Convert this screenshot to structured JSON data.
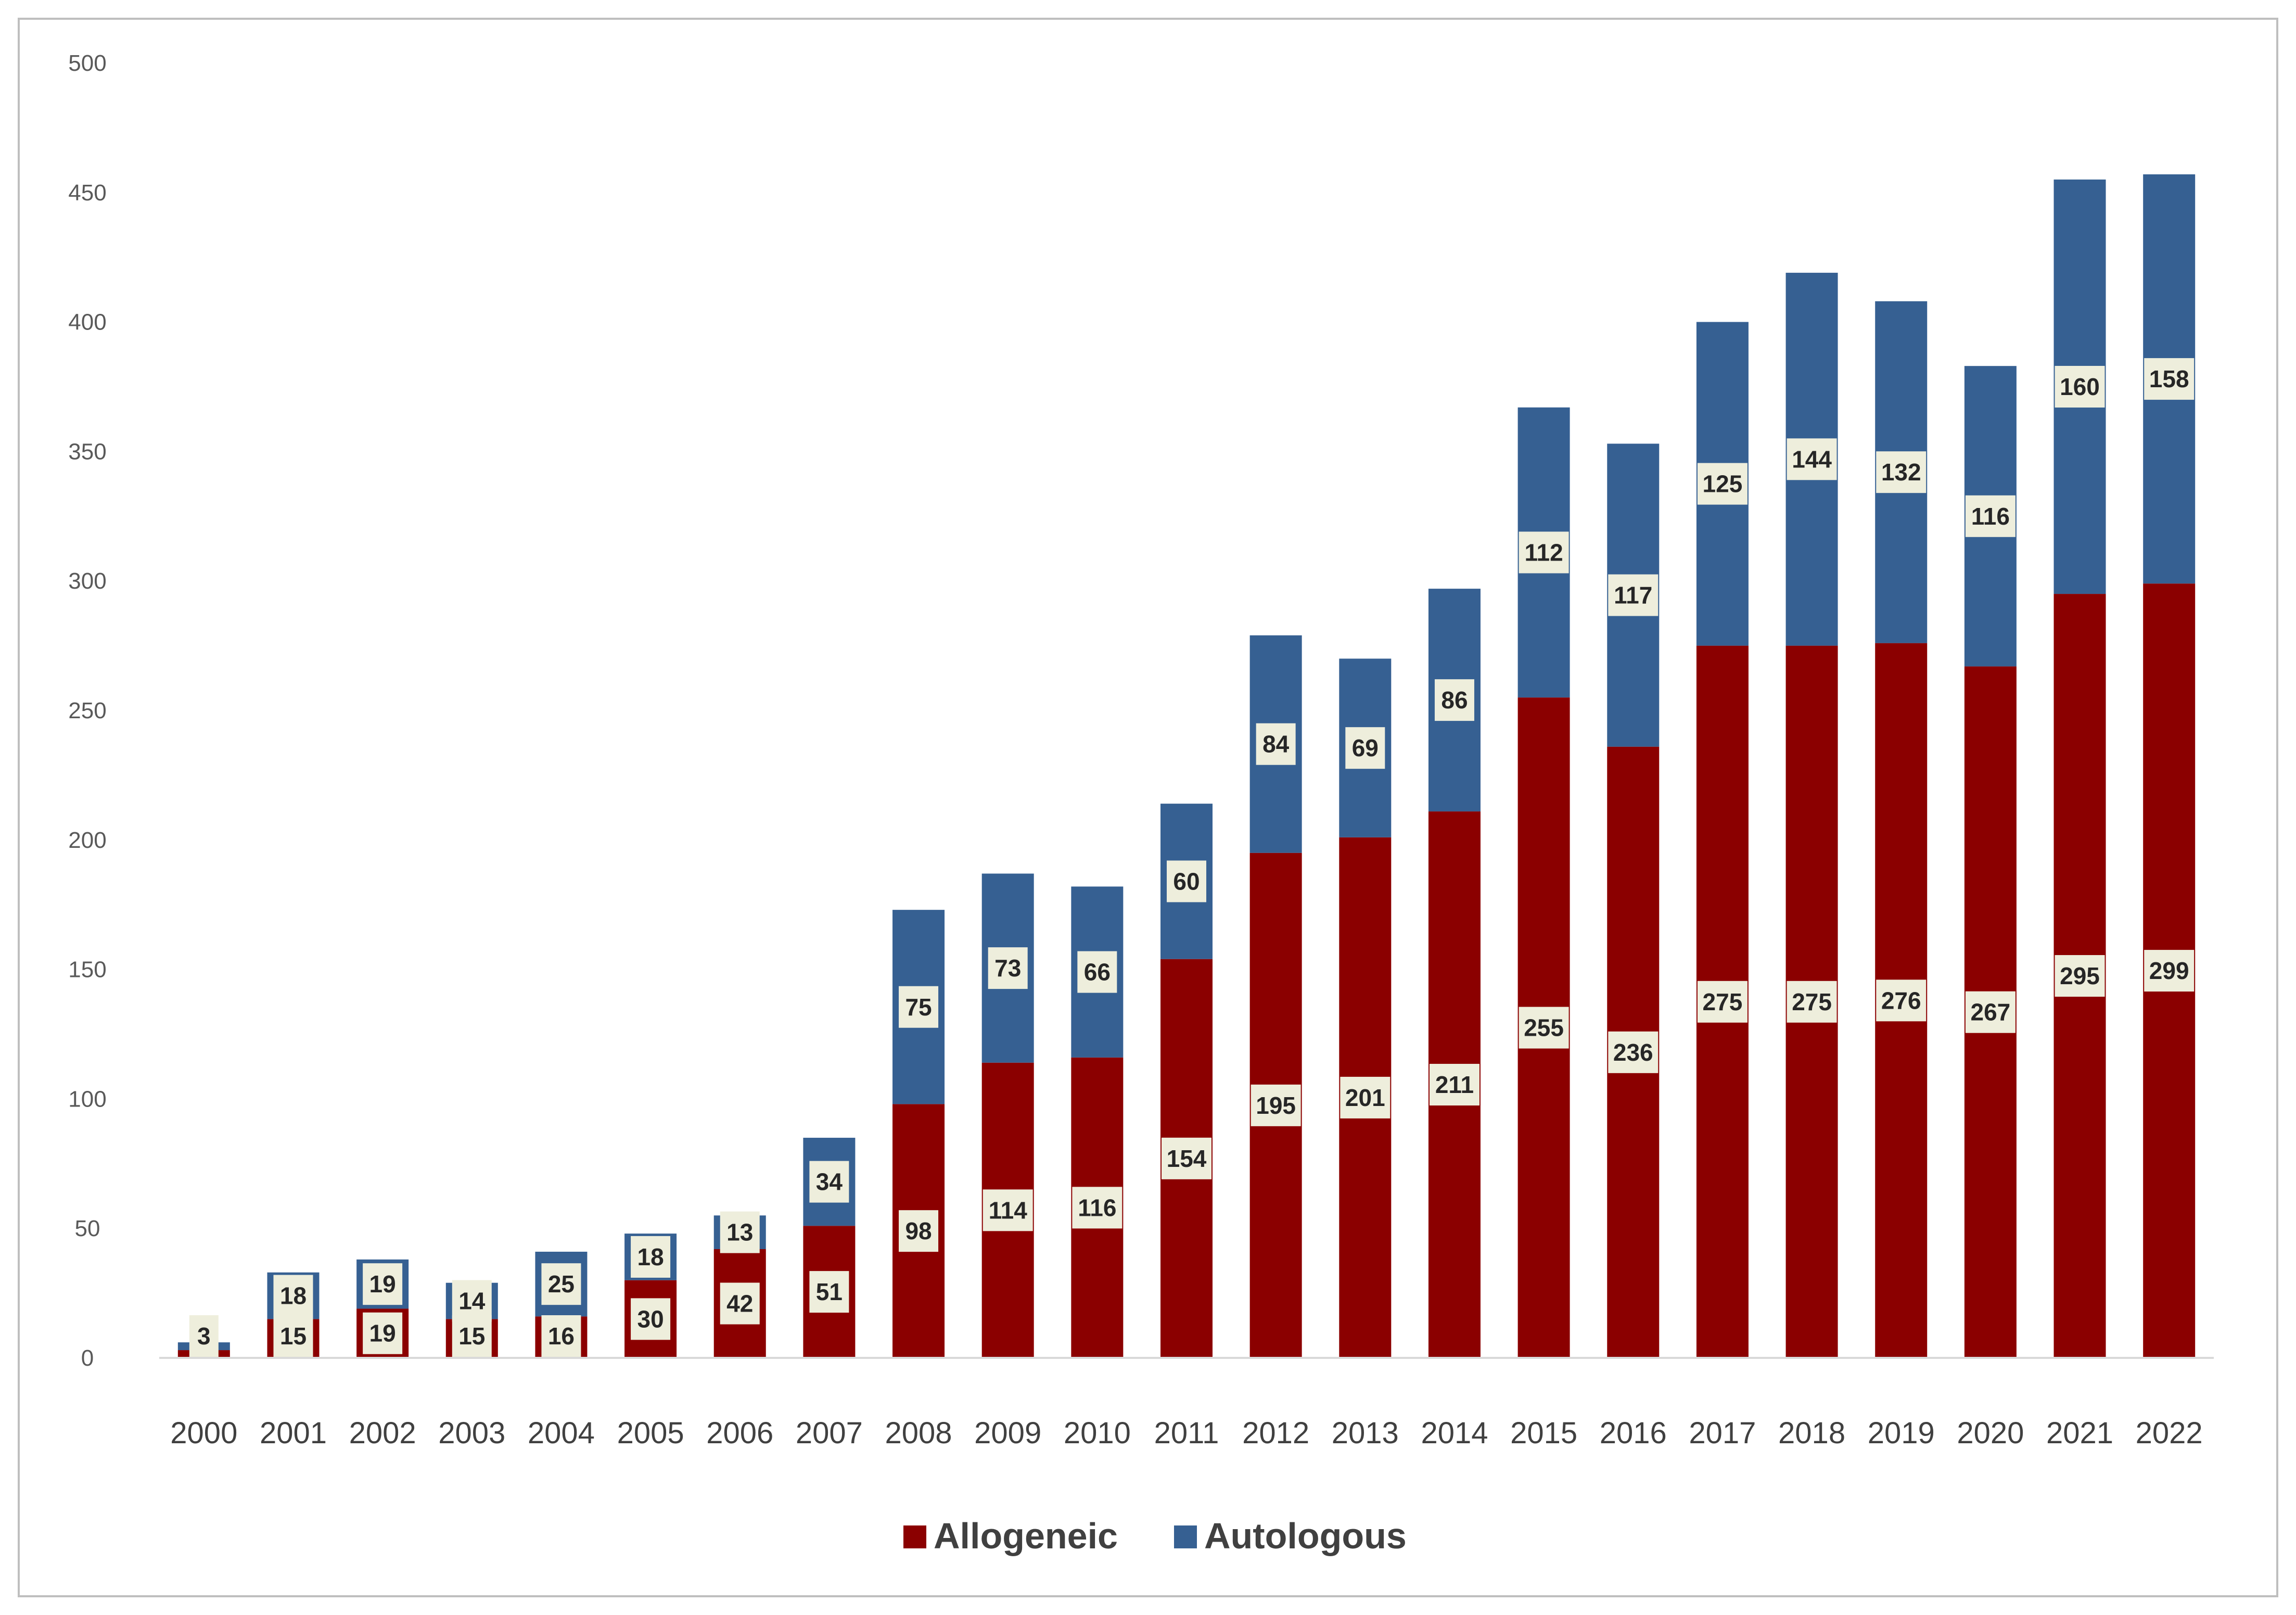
{
  "chart_data": {
    "type": "bar",
    "stacked": true,
    "categories": [
      "2000",
      "2001",
      "2002",
      "2003",
      "2004",
      "2005",
      "2006",
      "2007",
      "2008",
      "2009",
      "2010",
      "2011",
      "2012",
      "2013",
      "2014",
      "2015",
      "2016",
      "2017",
      "2018",
      "2019",
      "2020",
      "2021",
      "2022"
    ],
    "series": [
      {
        "name": "Allogeneic",
        "color": "#8b0000",
        "values": [
          3,
          15,
          19,
          15,
          16,
          30,
          42,
          51,
          98,
          114,
          116,
          154,
          195,
          201,
          211,
          255,
          236,
          275,
          275,
          276,
          267,
          295,
          299
        ]
      },
      {
        "name": "Autologous",
        "color": "#366092",
        "values": [
          3,
          18,
          19,
          14,
          25,
          18,
          13,
          34,
          75,
          73,
          66,
          60,
          84,
          69,
          86,
          112,
          117,
          125,
          144,
          132,
          116,
          160,
          158
        ]
      }
    ],
    "autologous_label_shown": [
      false,
      true,
      true,
      true,
      true,
      true,
      true,
      true,
      true,
      true,
      true,
      true,
      true,
      true,
      true,
      true,
      true,
      true,
      true,
      true,
      true,
      true,
      true
    ],
    "ylim": [
      0,
      500
    ],
    "yticks": [
      0,
      50,
      100,
      150,
      200,
      250,
      300,
      350,
      400,
      450,
      500
    ],
    "title": "",
    "xlabel": "",
    "ylabel": "",
    "grid": false,
    "legend_position": "bottom-center",
    "label_box_color": "#eeeedc"
  }
}
